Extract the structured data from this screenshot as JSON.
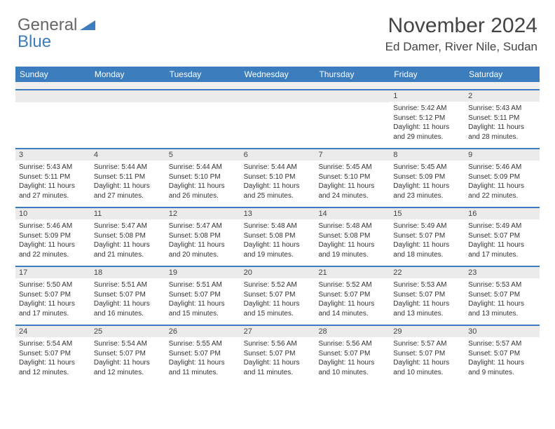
{
  "logo": {
    "text1": "General",
    "text2": "Blue"
  },
  "header": {
    "month": "November 2024",
    "location": "Ed Damer, River Nile, Sudan"
  },
  "colors": {
    "accent": "#3b7dbd",
    "header_bg": "#3b7dbd",
    "daynum_bg": "#ebebeb"
  },
  "day_names": [
    "Sunday",
    "Monday",
    "Tuesday",
    "Wednesday",
    "Thursday",
    "Friday",
    "Saturday"
  ],
  "weeks": [
    [
      {},
      {},
      {},
      {},
      {},
      {
        "num": "1",
        "sunrise": "5:42 AM",
        "sunset": "5:12 PM",
        "daylight": "11 hours and 29 minutes."
      },
      {
        "num": "2",
        "sunrise": "5:43 AM",
        "sunset": "5:11 PM",
        "daylight": "11 hours and 28 minutes."
      }
    ],
    [
      {
        "num": "3",
        "sunrise": "5:43 AM",
        "sunset": "5:11 PM",
        "daylight": "11 hours and 27 minutes."
      },
      {
        "num": "4",
        "sunrise": "5:44 AM",
        "sunset": "5:11 PM",
        "daylight": "11 hours and 27 minutes."
      },
      {
        "num": "5",
        "sunrise": "5:44 AM",
        "sunset": "5:10 PM",
        "daylight": "11 hours and 26 minutes."
      },
      {
        "num": "6",
        "sunrise": "5:44 AM",
        "sunset": "5:10 PM",
        "daylight": "11 hours and 25 minutes."
      },
      {
        "num": "7",
        "sunrise": "5:45 AM",
        "sunset": "5:10 PM",
        "daylight": "11 hours and 24 minutes."
      },
      {
        "num": "8",
        "sunrise": "5:45 AM",
        "sunset": "5:09 PM",
        "daylight": "11 hours and 23 minutes."
      },
      {
        "num": "9",
        "sunrise": "5:46 AM",
        "sunset": "5:09 PM",
        "daylight": "11 hours and 22 minutes."
      }
    ],
    [
      {
        "num": "10",
        "sunrise": "5:46 AM",
        "sunset": "5:09 PM",
        "daylight": "11 hours and 22 minutes."
      },
      {
        "num": "11",
        "sunrise": "5:47 AM",
        "sunset": "5:08 PM",
        "daylight": "11 hours and 21 minutes."
      },
      {
        "num": "12",
        "sunrise": "5:47 AM",
        "sunset": "5:08 PM",
        "daylight": "11 hours and 20 minutes."
      },
      {
        "num": "13",
        "sunrise": "5:48 AM",
        "sunset": "5:08 PM",
        "daylight": "11 hours and 19 minutes."
      },
      {
        "num": "14",
        "sunrise": "5:48 AM",
        "sunset": "5:08 PM",
        "daylight": "11 hours and 19 minutes."
      },
      {
        "num": "15",
        "sunrise": "5:49 AM",
        "sunset": "5:07 PM",
        "daylight": "11 hours and 18 minutes."
      },
      {
        "num": "16",
        "sunrise": "5:49 AM",
        "sunset": "5:07 PM",
        "daylight": "11 hours and 17 minutes."
      }
    ],
    [
      {
        "num": "17",
        "sunrise": "5:50 AM",
        "sunset": "5:07 PM",
        "daylight": "11 hours and 17 minutes."
      },
      {
        "num": "18",
        "sunrise": "5:51 AM",
        "sunset": "5:07 PM",
        "daylight": "11 hours and 16 minutes."
      },
      {
        "num": "19",
        "sunrise": "5:51 AM",
        "sunset": "5:07 PM",
        "daylight": "11 hours and 15 minutes."
      },
      {
        "num": "20",
        "sunrise": "5:52 AM",
        "sunset": "5:07 PM",
        "daylight": "11 hours and 15 minutes."
      },
      {
        "num": "21",
        "sunrise": "5:52 AM",
        "sunset": "5:07 PM",
        "daylight": "11 hours and 14 minutes."
      },
      {
        "num": "22",
        "sunrise": "5:53 AM",
        "sunset": "5:07 PM",
        "daylight": "11 hours and 13 minutes."
      },
      {
        "num": "23",
        "sunrise": "5:53 AM",
        "sunset": "5:07 PM",
        "daylight": "11 hours and 13 minutes."
      }
    ],
    [
      {
        "num": "24",
        "sunrise": "5:54 AM",
        "sunset": "5:07 PM",
        "daylight": "11 hours and 12 minutes."
      },
      {
        "num": "25",
        "sunrise": "5:54 AM",
        "sunset": "5:07 PM",
        "daylight": "11 hours and 12 minutes."
      },
      {
        "num": "26",
        "sunrise": "5:55 AM",
        "sunset": "5:07 PM",
        "daylight": "11 hours and 11 minutes."
      },
      {
        "num": "27",
        "sunrise": "5:56 AM",
        "sunset": "5:07 PM",
        "daylight": "11 hours and 11 minutes."
      },
      {
        "num": "28",
        "sunrise": "5:56 AM",
        "sunset": "5:07 PM",
        "daylight": "11 hours and 10 minutes."
      },
      {
        "num": "29",
        "sunrise": "5:57 AM",
        "sunset": "5:07 PM",
        "daylight": "11 hours and 10 minutes."
      },
      {
        "num": "30",
        "sunrise": "5:57 AM",
        "sunset": "5:07 PM",
        "daylight": "11 hours and 9 minutes."
      }
    ]
  ],
  "labels": {
    "sunrise": "Sunrise: ",
    "sunset": "Sunset: ",
    "daylight": "Daylight: "
  }
}
